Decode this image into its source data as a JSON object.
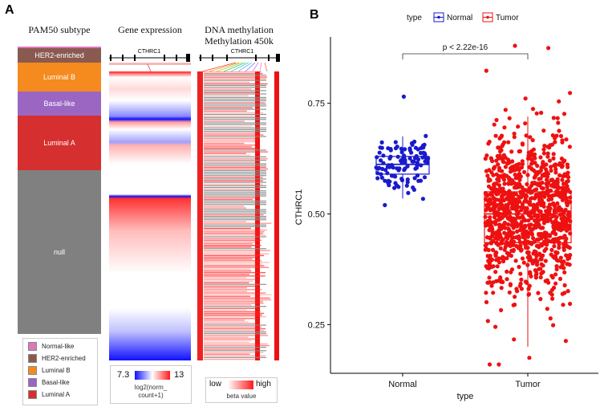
{
  "panel_a": {
    "letter": "A",
    "titles": {
      "subtype": "PAM50 subtype",
      "expression": "Gene expression",
      "methylation": "DNA methylation",
      "methylation_sub": "Methylation 450k"
    },
    "gene_label": "CTHRC1",
    "segments": [
      {
        "name": "",
        "color": "#dd77bb",
        "frac": 0.005
      },
      {
        "name": "HER2-enriched",
        "color": "#8a5a50",
        "frac": 0.05
      },
      {
        "name": "Luminal B",
        "color": "#f58a1f",
        "frac": 0.1
      },
      {
        "name": "Basal-like",
        "color": "#9a66c2",
        "frac": 0.085
      },
      {
        "name": "Luminal A",
        "color": "#d62f2f",
        "frac": 0.19
      },
      {
        "name": "null",
        "color": "#808080",
        "frac": 0.57
      }
    ],
    "legend": [
      {
        "name": "Normal-like",
        "color": "#dd77bb"
      },
      {
        "name": "HER2-enriched",
        "color": "#8a5a50"
      },
      {
        "name": "Luminal B",
        "color": "#f58a1f"
      },
      {
        "name": "Basal-like",
        "color": "#9a66c2"
      },
      {
        "name": "Luminal A",
        "color": "#d62f2f"
      }
    ],
    "expr_scale": {
      "min_label": "7.3",
      "max_label": "13",
      "caption1": "log2(norm_",
      "caption2": "count+1)"
    },
    "meth_scale": {
      "low_label": "low",
      "high_label": "high",
      "caption": "beta value"
    }
  },
  "panel_b": {
    "letter": "B",
    "legend_title": "type",
    "pvalue": "p < 2.22e-16",
    "chart_data": {
      "type": "box",
      "title": "",
      "xlabel": "type",
      "ylabel": "CTHRC1",
      "categories": [
        "Normal",
        "Tumor"
      ],
      "ylim": [
        0.14,
        0.9
      ],
      "yticks": [
        0.25,
        0.5,
        0.75
      ],
      "ytick_labels": [
        "0.25",
        "0.50",
        "0.75"
      ],
      "series": [
        {
          "name": "Normal",
          "color": "#1a1acc",
          "n": 113,
          "box": {
            "q1": 0.59,
            "median": 0.612,
            "q3": 0.63,
            "whisker_low": 0.535,
            "whisker_high": 0.675
          },
          "range": [
            0.52,
            0.765
          ]
        },
        {
          "name": "Tumor",
          "color": "#ee1111",
          "n": 1100,
          "box": {
            "q1": 0.435,
            "median": 0.5,
            "q3": 0.55,
            "whisker_low": 0.2,
            "whisker_high": 0.72
          },
          "range": [
            0.16,
            0.88
          ]
        }
      ]
    }
  }
}
